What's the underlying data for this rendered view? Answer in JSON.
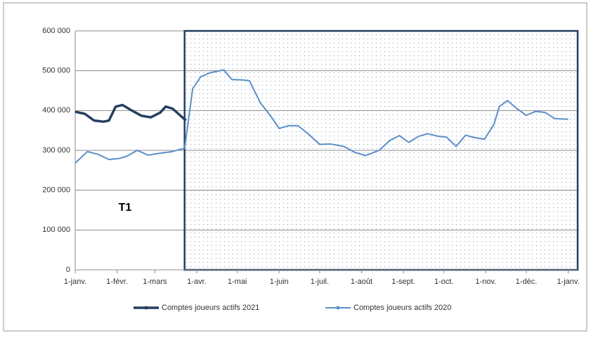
{
  "chart_data": {
    "type": "line",
    "annotation": "T1",
    "highlight_from": 81,
    "xlim": [
      0,
      372
    ],
    "xticks": [
      {
        "value": 0,
        "label": "1-janv."
      },
      {
        "value": 31,
        "label": "1-févr."
      },
      {
        "value": 59,
        "label": "1-mars"
      },
      {
        "value": 90,
        "label": "1-avr."
      },
      {
        "value": 120,
        "label": "1-mai"
      },
      {
        "value": 151,
        "label": "1-juin"
      },
      {
        "value": 181,
        "label": "1-juil."
      },
      {
        "value": 212,
        "label": "1-août"
      },
      {
        "value": 243,
        "label": "1-sept."
      },
      {
        "value": 273,
        "label": "1-oct."
      },
      {
        "value": 304,
        "label": "1-nov."
      },
      {
        "value": 334,
        "label": "1-déc."
      },
      {
        "value": 365,
        "label": "1-janv."
      }
    ],
    "ylim": [
      0,
      600000
    ],
    "yticks": [
      0,
      {
        "value": 100000,
        "label": "100 000"
      },
      {
        "value": 200000,
        "label": "200 000"
      },
      {
        "value": 300000,
        "label": "300 000"
      },
      {
        "value": 400000,
        "label": "400 000"
      },
      {
        "value": 500000,
        "label": "500 000"
      },
      {
        "value": 600000,
        "label": "600 000"
      }
    ],
    "grid": true,
    "legend": "bottom",
    "series": [
      {
        "name": "Comptes joueurs actifs 2021",
        "color": "#243f60",
        "width": 3.5,
        "x": [
          0,
          7,
          14,
          21,
          25,
          30,
          35,
          42,
          49,
          56,
          63,
          67,
          72,
          77,
          82
        ],
        "values": [
          397000,
          392000,
          375000,
          372000,
          375000,
          410000,
          414000,
          400000,
          387000,
          383000,
          395000,
          410000,
          405000,
          390000,
          375000
        ]
      },
      {
        "name": "Comptes joueurs actifs 2020",
        "color": "#5b8fc9",
        "width": 2,
        "x": [
          0,
          9,
          17,
          25,
          33,
          38,
          46,
          54,
          61,
          72,
          77,
          81,
          87,
          93,
          100,
          110,
          116,
          124,
          129,
          137,
          145,
          151,
          158,
          165,
          173,
          181,
          189,
          199,
          207,
          215,
          225,
          233,
          240,
          247,
          254,
          261,
          268,
          275,
          282,
          289,
          296,
          303,
          310,
          314,
          320,
          327,
          334,
          341,
          348,
          355,
          365
        ],
        "values": [
          268000,
          297000,
          290000,
          277000,
          280000,
          285000,
          300000,
          288000,
          292000,
          297000,
          302000,
          305000,
          455000,
          485000,
          495000,
          502000,
          478000,
          477000,
          475000,
          420000,
          385000,
          355000,
          362000,
          362000,
          340000,
          315000,
          316000,
          310000,
          295000,
          287000,
          300000,
          325000,
          337000,
          320000,
          335000,
          342000,
          336000,
          333000,
          310000,
          338000,
          332000,
          328000,
          365000,
          410000,
          425000,
          405000,
          388000,
          398000,
          395000,
          380000,
          378000
        ]
      }
    ]
  }
}
